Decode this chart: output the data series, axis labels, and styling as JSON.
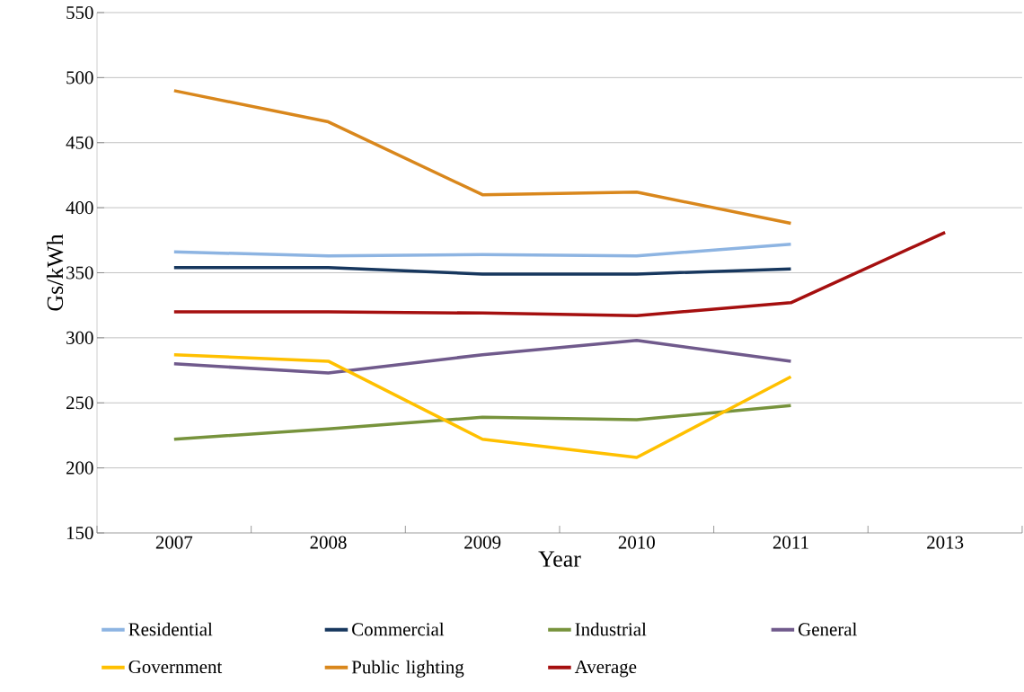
{
  "chart_data": {
    "type": "line",
    "xlabel": "Year",
    "ylabel": "Gs/kWh",
    "categories": [
      "2007",
      "2008",
      "2009",
      "2010",
      "2011",
      "2013"
    ],
    "ylim": [
      150,
      550
    ],
    "yticks": [
      150,
      200,
      250,
      300,
      350,
      400,
      450,
      500,
      550
    ],
    "grid": "y",
    "legend": "bottom",
    "marker": "none",
    "line_style": "solid",
    "series": [
      {
        "name": "Residential",
        "color": "#8db4e2",
        "values": [
          366,
          363,
          364,
          363,
          372,
          null
        ]
      },
      {
        "name": "Commercial",
        "color": "#17375e",
        "values": [
          354,
          354,
          349,
          349,
          353,
          null
        ]
      },
      {
        "name": "Industrial",
        "color": "#77933c",
        "values": [
          222,
          230,
          239,
          237,
          248,
          null
        ]
      },
      {
        "name": "General",
        "color": "#705a8c",
        "values": [
          280,
          273,
          287,
          298,
          282,
          null
        ]
      },
      {
        "name": "Government",
        "color": "#ffc000",
        "values": [
          287,
          282,
          222,
          208,
          270,
          null
        ]
      },
      {
        "name": "Public lighting",
        "color": "#d9871c",
        "values": [
          490,
          466,
          410,
          412,
          388,
          null
        ]
      },
      {
        "name": "Average",
        "color": "#a50f0f",
        "values": [
          320,
          320,
          319,
          317,
          327,
          381
        ]
      }
    ]
  }
}
